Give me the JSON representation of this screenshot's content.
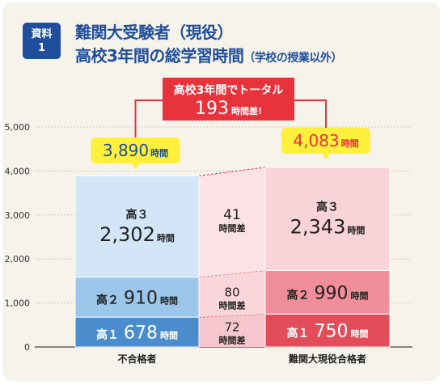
{
  "badge": {
    "line1": "資料",
    "line2": "1"
  },
  "title": {
    "line1": "難関大受験者（現役）",
    "line2_main": "高校3年間の総学習時間",
    "line2_sub": "（学校の授業以外）"
  },
  "callout": {
    "line1": "高校3年間でトータル",
    "value": "193",
    "unit": "時間差!"
  },
  "unit": "時間",
  "diff_unit": "時間差",
  "colors": {
    "red": "#e8323c",
    "yellow": "#fff03c",
    "group1": [
      "#4a8ccc",
      "#9cc6ea",
      "#d2e6f7"
    ],
    "group2": [
      "#e14e5a",
      "#f08e9a",
      "#f9d3d8"
    ],
    "connector": [
      "#f5c6cd",
      "#fad6db",
      "#fbe2e5"
    ]
  },
  "chart_data": {
    "type": "bar",
    "stacked": true,
    "categories": [
      "不合格者",
      "難関大現役合格者"
    ],
    "series": [
      {
        "name": "高１",
        "values": [
          678,
          750
        ]
      },
      {
        "name": "高２",
        "values": [
          910,
          990
        ]
      },
      {
        "name": "高３",
        "values": [
          2302,
          2343
        ]
      }
    ],
    "totals": [
      3890,
      4083
    ],
    "differences": [
      72,
      80,
      41
    ],
    "total_difference": 193,
    "ylim": [
      0,
      5000
    ],
    "yticks": [
      "0",
      "1,000",
      "2,000",
      "3,000",
      "4,000",
      "5,000"
    ],
    "segment_labels": {
      "series": [
        "高１",
        "高２",
        "高３"
      ],
      "values": [
        [
          "678",
          "750"
        ],
        [
          "910",
          "990"
        ],
        [
          "2,302",
          "2,343"
        ]
      ]
    },
    "total_labels": [
      "3,890",
      "4,083"
    ],
    "diff_labels": [
      "72",
      "80",
      "41"
    ]
  }
}
